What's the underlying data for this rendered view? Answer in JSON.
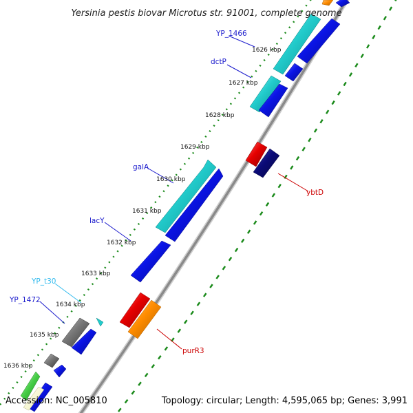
{
  "header": {
    "title": "Yersinia pestis biovar Microtus str. 91001, complete genome"
  },
  "footer": {
    "accession": "Accession: NC_005810",
    "topology": "Topology: circular; Length: 4,595,065 bp; Genes: 3,991"
  },
  "ruler": {
    "ticks": [
      "1626 kbp",
      "1627 kbp",
      "1628 kbp",
      "1629 kbp",
      "1630 kbp",
      "1631 kbp",
      "1632 kbp",
      "1633 kbp",
      "1634 kbp",
      "1635 kbp",
      "1636 kbp"
    ]
  },
  "genes": {
    "YP_1466": "YP_1466",
    "dctP": "dctP",
    "galA": "galA",
    "lacY": "lacY",
    "YP_t30": "YP_t30",
    "YP_1472": "YP_1472",
    "ybtD": "ybtD",
    "purR3": "purR3"
  },
  "colors": {
    "cyan": "#22cccc",
    "blue": "#0a14e6",
    "navy": "#0b0b78",
    "red": "#e60000",
    "orange": "#ff8c00",
    "gray": "#666666",
    "green_dots": "#1a8a1a",
    "label_blue": "#1a1acc",
    "label_cyan": "#33bbee",
    "label_red": "#cc0000"
  }
}
